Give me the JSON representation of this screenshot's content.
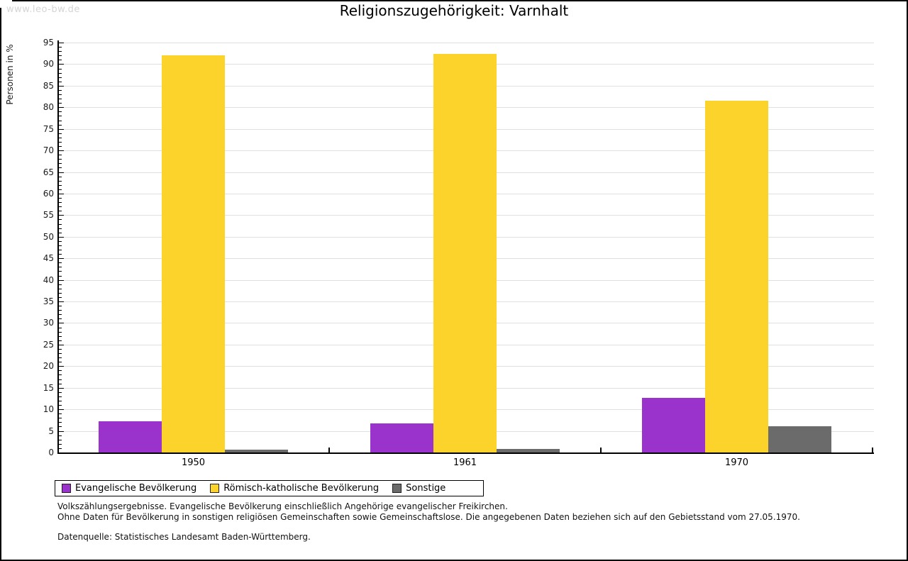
{
  "watermark": "www.leo-bw.de",
  "footnotes": {
    "line1": "Volkszählungsergebnisse. Evangelische Bevölkerung einschließlich Angehörige evangelischer Freikirchen.",
    "line2": "Ohne Daten für Bevölkerung in sonstigen religiösen Gemeinschaften sowie Gemeinschaftslose. Die angegebenen Daten beziehen sich auf den Gebietsstand vom 27.05.1970.",
    "source": "Datenquelle: Statistisches Landesamt Baden-Württemberg."
  },
  "chart_data": {
    "type": "bar",
    "title": "Religionszugehörigkeit: Varnhalt",
    "ylabel": "Personen in %",
    "xlabel": "",
    "categories": [
      "1950",
      "1961",
      "1970"
    ],
    "series": [
      {
        "name": "Evangelische Bevölkerung",
        "color": "#9933cc",
        "values": [
          7.3,
          6.7,
          12.7
        ]
      },
      {
        "name": "Römisch-katholische Bevölkerung",
        "color": "#fcd32b",
        "values": [
          92.0,
          92.4,
          81.5
        ]
      },
      {
        "name": "Sonstige",
        "color": "#6b6b6b",
        "values": [
          0.6,
          0.8,
          6.1
        ]
      }
    ],
    "ylim": [
      0,
      95
    ],
    "ytick_step": 5,
    "ytick_minor_step": 1,
    "grid": true,
    "gridline_color": "#e0e0e0",
    "legend_position": "bottom"
  }
}
